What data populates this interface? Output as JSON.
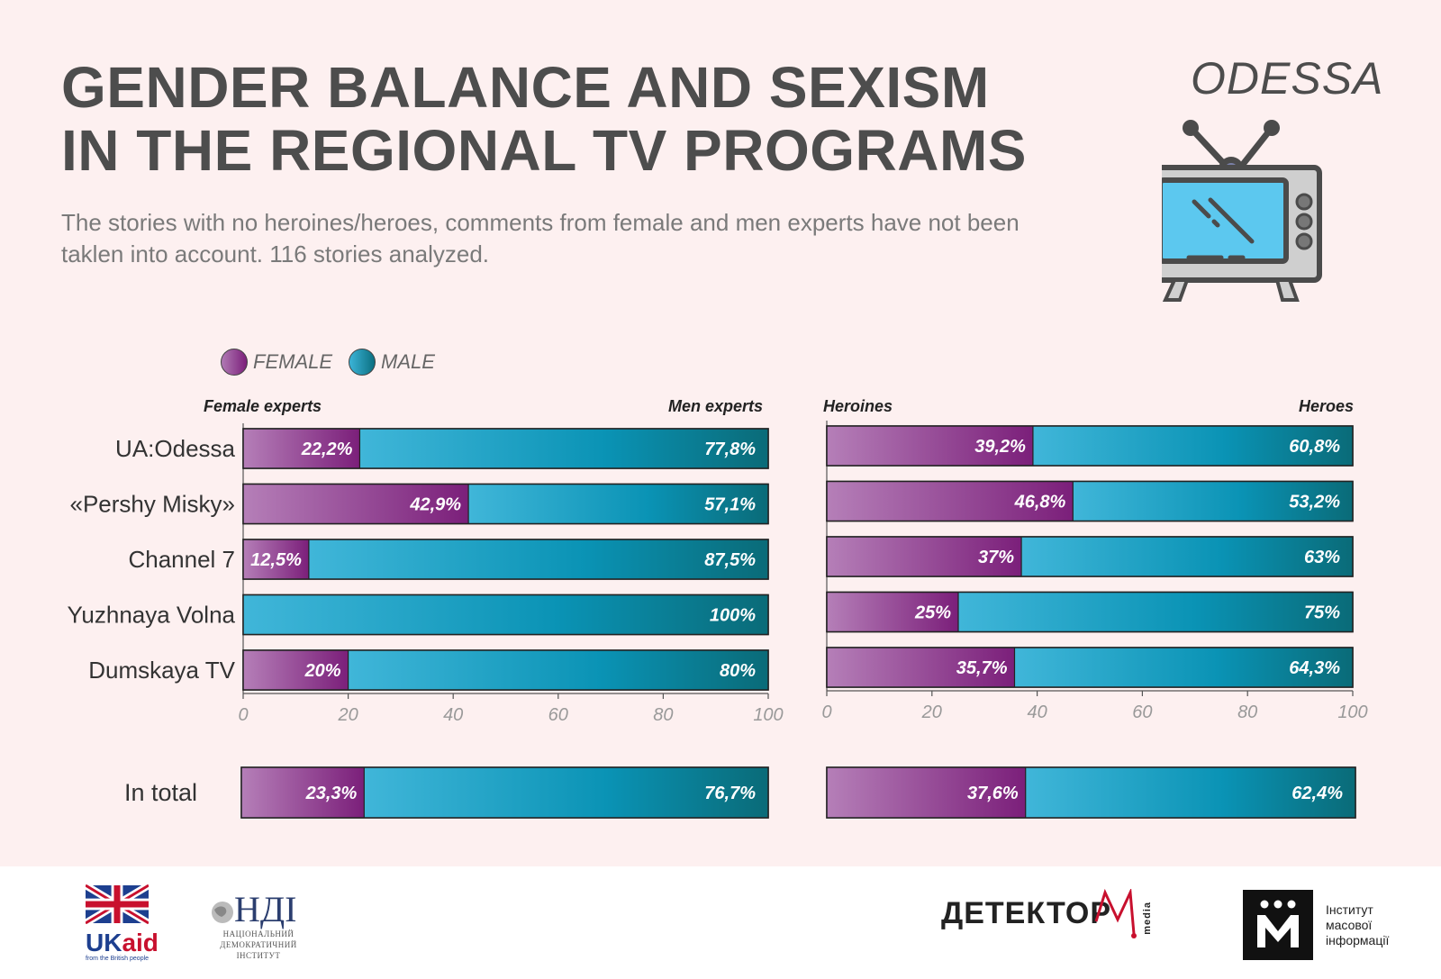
{
  "header": {
    "title_line1": "GENDER BALANCE AND SEXISM",
    "title_line2": "IN THE REGIONAL TV PROGRAMS",
    "subtitle": "The stories with no heroines/heroes, comments from female and men experts have not been taklen into account. 116 stories analyzed.",
    "city": "ODESSA"
  },
  "legend": {
    "female": "FEMALE",
    "male": "MALE"
  },
  "colors": {
    "female_light": "#b57fb8",
    "female_dark": "#7b1f7a",
    "male_light": "#40b6d9",
    "male_mid": "#0a93b5",
    "male_dark": "#0a6b78"
  },
  "total_label": "In total",
  "chart_data": [
    {
      "type": "bar",
      "stacked": true,
      "orientation": "horizontal",
      "left_header": "Female experts",
      "right_header": "Men experts",
      "categories": [
        "UA:Odessa",
        "«Pershy Misky»",
        "Channel 7",
        "Yuzhnaya Volna",
        "Dumskaya TV"
      ],
      "series": [
        {
          "name": "FEMALE",
          "values": [
            22.2,
            42.9,
            12.5,
            0,
            20
          ],
          "labels": [
            "22,2%",
            "42,9%",
            "12,5%",
            "",
            "20%"
          ]
        },
        {
          "name": "MALE",
          "values": [
            77.8,
            57.1,
            87.5,
            100,
            80
          ],
          "labels": [
            "77,8%",
            "57,1%",
            "87,5%",
            "100%",
            "80%"
          ]
        }
      ],
      "xlim": [
        0,
        100
      ],
      "xticks": [
        "0",
        "20",
        "40",
        "60",
        "80",
        "100"
      ],
      "total": {
        "female": 23.3,
        "male": 76.7,
        "female_label": "23,3%",
        "male_label": "76,7%"
      }
    },
    {
      "type": "bar",
      "stacked": true,
      "orientation": "horizontal",
      "left_header": "Heroines",
      "right_header": "Heroes",
      "categories": [
        "UA:Odessa",
        "«Pershy Misky»",
        "Channel 7",
        "Yuzhnaya Volna",
        "Dumskaya TV"
      ],
      "series": [
        {
          "name": "FEMALE",
          "values": [
            39.2,
            46.8,
            37,
            25,
            35.7
          ],
          "labels": [
            "39,2%",
            "46,8%",
            "37%",
            "25%",
            "35,7%"
          ]
        },
        {
          "name": "MALE",
          "values": [
            60.8,
            53.2,
            63,
            75,
            64.3
          ],
          "labels": [
            "60,8%",
            "53,2%",
            "63%",
            "75%",
            "64,3%"
          ]
        }
      ],
      "xlim": [
        0,
        100
      ],
      "xticks": [
        "0",
        "20",
        "40",
        "60",
        "80",
        "100"
      ],
      "total": {
        "female": 37.6,
        "male": 62.4,
        "female_label": "37,6%",
        "male_label": "62,4%"
      }
    }
  ],
  "footer": {
    "ukaid": "UK",
    "ukaid_accent": "aid",
    "ukaid_sub": "from the British people",
    "ndi_big": "НДІ",
    "ndi_sub": [
      "НАЦІОНАЛЬНИЙ",
      "ДЕМОКРАТИЧНИЙ",
      "ІНСТИТУТ"
    ],
    "detector": "ДЕТЕКТОР",
    "detector_media": "media",
    "imi": [
      "Інститут",
      "масової",
      "інформації"
    ]
  }
}
